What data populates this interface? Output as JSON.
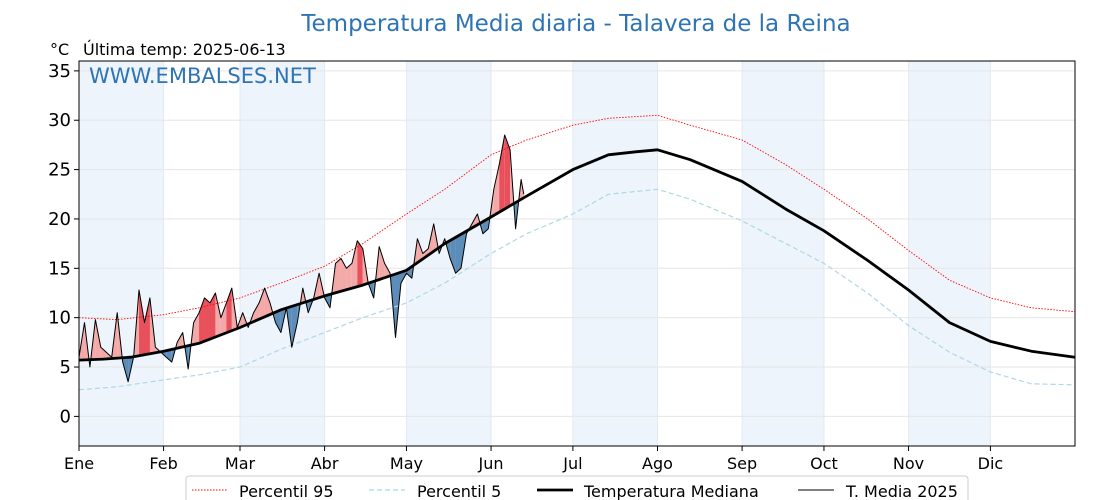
{
  "chart_data": {
    "type": "line",
    "title": "Temperatura Media diaria - Talavera de la Reina",
    "unit_label": "°C",
    "last_temp_label": "Última temp: 2025-06-13",
    "watermark": "WWW.EMBALSES.NET",
    "xlabel": "",
    "ylabel": "",
    "ylim": [
      -3,
      36
    ],
    "yticks": [
      0,
      5,
      10,
      15,
      20,
      25,
      30,
      35
    ],
    "x_unit": "day of year",
    "xlim": [
      1,
      366
    ],
    "months": [
      "Ene",
      "Feb",
      "Mar",
      "Abr",
      "May",
      "Jun",
      "Jul",
      "Ago",
      "Sep",
      "Oct",
      "Nov",
      "Dic"
    ],
    "month_start_days": [
      1,
      32,
      60,
      91,
      121,
      152,
      182,
      213,
      244,
      274,
      305,
      335
    ],
    "grid": true,
    "legend_position": "bottom",
    "colors": {
      "p95": "#ff0000",
      "p5": "#add8e6",
      "median": "#000000",
      "current": "#000000",
      "above_fill": "#f4a9a9",
      "above_fill_strong": "#e8505b",
      "below_fill": "#5b8db8",
      "band": "#eef4fb"
    },
    "series": [
      {
        "name": "Percentil 95",
        "style": "dotted",
        "x": [
          1,
          15,
          32,
          45,
          60,
          75,
          91,
          105,
          121,
          135,
          152,
          165,
          182,
          195,
          213,
          225,
          244,
          260,
          274,
          290,
          305,
          320,
          335,
          350,
          366
        ],
        "values": [
          10.0,
          9.8,
          10.3,
          11.0,
          12.0,
          13.5,
          15.2,
          17.5,
          20.5,
          23.0,
          26.5,
          28.0,
          29.5,
          30.2,
          30.5,
          29.5,
          28.0,
          25.5,
          23.0,
          20.0,
          16.8,
          13.8,
          12.0,
          11.0,
          10.6
        ]
      },
      {
        "name": "Percentil 5",
        "style": "dashed",
        "x": [
          1,
          15,
          32,
          45,
          60,
          75,
          91,
          105,
          121,
          135,
          152,
          165,
          182,
          195,
          213,
          225,
          244,
          260,
          274,
          290,
          305,
          320,
          335,
          350,
          366
        ],
        "values": [
          2.7,
          3.0,
          3.7,
          4.2,
          5.0,
          6.8,
          8.5,
          10.0,
          11.5,
          13.5,
          16.5,
          18.5,
          20.5,
          22.5,
          23.0,
          22.0,
          19.8,
          17.5,
          15.5,
          12.5,
          9.2,
          6.5,
          4.5,
          3.3,
          3.2
        ]
      },
      {
        "name": "Temperatura Mediana",
        "style": "solid-thick",
        "x": [
          1,
          10,
          20,
          32,
          45,
          60,
          75,
          91,
          105,
          121,
          135,
          152,
          165,
          182,
          195,
          205,
          213,
          225,
          244,
          260,
          274,
          290,
          305,
          320,
          335,
          350,
          366
        ],
        "values": [
          5.7,
          5.8,
          6.0,
          6.6,
          7.4,
          9.0,
          10.8,
          12.2,
          13.3,
          14.8,
          17.5,
          20.2,
          22.3,
          25.0,
          26.5,
          26.8,
          27.0,
          26.0,
          23.8,
          21.0,
          18.8,
          15.8,
          12.8,
          9.5,
          7.6,
          6.6,
          6.0
        ]
      },
      {
        "name": "T. Media 2025",
        "style": "solid-thin",
        "x": [
          1,
          3,
          5,
          7,
          9,
          11,
          13,
          15,
          17,
          19,
          21,
          23,
          25,
          27,
          29,
          31,
          33,
          35,
          37,
          39,
          41,
          43,
          45,
          47,
          49,
          51,
          53,
          55,
          57,
          59,
          61,
          63,
          65,
          67,
          69,
          71,
          73,
          75,
          77,
          79,
          81,
          83,
          85,
          87,
          89,
          91,
          93,
          95,
          97,
          99,
          101,
          103,
          105,
          107,
          109,
          111,
          113,
          115,
          117,
          119,
          121,
          123,
          125,
          127,
          129,
          131,
          133,
          135,
          137,
          139,
          141,
          143,
          145,
          147,
          149,
          151,
          153,
          155,
          157,
          159,
          161,
          163,
          164
        ],
        "values": [
          6.0,
          9.5,
          5.0,
          9.8,
          7.0,
          6.5,
          6.0,
          10.5,
          5.5,
          3.5,
          6.0,
          12.8,
          9.5,
          12.0,
          7.0,
          6.5,
          6.0,
          5.5,
          7.5,
          8.5,
          4.8,
          9.5,
          10.5,
          12.0,
          11.5,
          12.5,
          10.0,
          11.5,
          13.0,
          9.0,
          10.5,
          9.0,
          10.5,
          11.5,
          13.0,
          11.5,
          9.5,
          8.5,
          11.0,
          7.0,
          9.5,
          13.0,
          10.5,
          12.0,
          14.5,
          12.0,
          11.0,
          15.5,
          16.0,
          15.0,
          15.5,
          17.8,
          17.0,
          13.5,
          12.0,
          17.2,
          15.5,
          14.5,
          8.0,
          13.5,
          14.5,
          14.0,
          18.0,
          16.5,
          17.0,
          19.5,
          16.5,
          18.0,
          16.0,
          14.5,
          15.0,
          18.5,
          19.5,
          20.5,
          18.5,
          19.0,
          23.0,
          25.5,
          28.5,
          27.0,
          19.0,
          24.0,
          22.5
        ]
      }
    ]
  }
}
